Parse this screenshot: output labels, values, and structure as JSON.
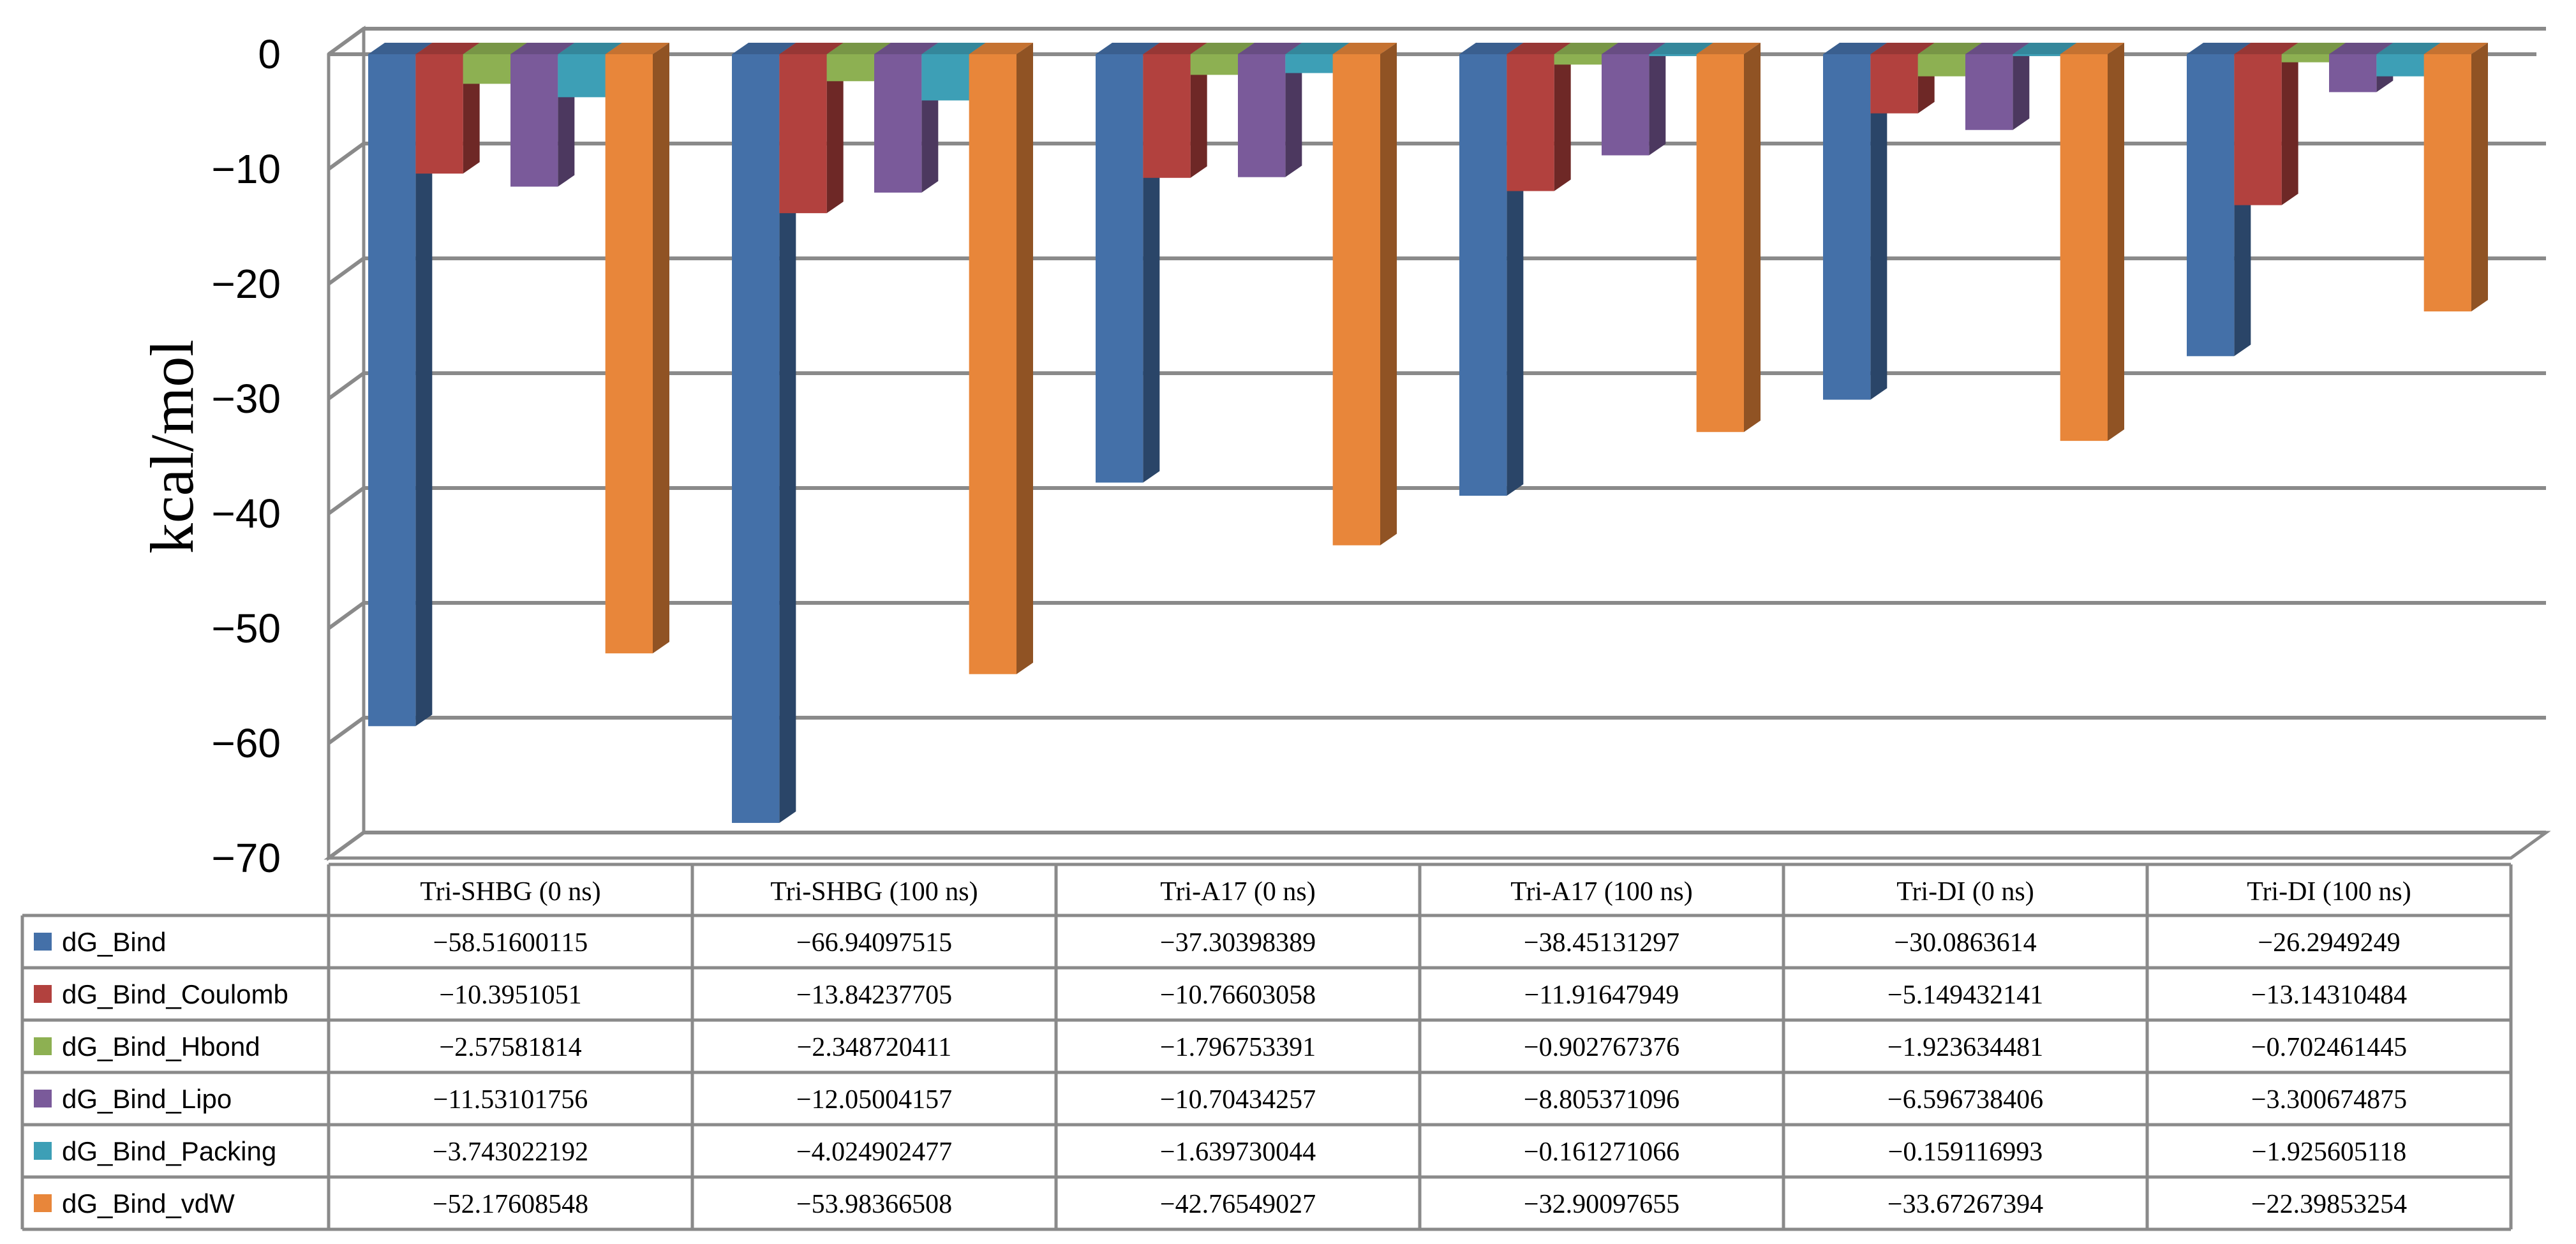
{
  "chart_data": {
    "type": "bar",
    "style": "3d-clustered-column-with-data-table",
    "title": "",
    "xlabel": "",
    "ylabel": "kcal/mol",
    "ylim": [
      -70,
      0
    ],
    "yticks": [
      0,
      -10,
      -20,
      -30,
      -40,
      -50,
      -60,
      -70
    ],
    "ytick_labels": [
      "0",
      "−10",
      "−20",
      "−30",
      "−40",
      "−50",
      "−60",
      "−70"
    ],
    "grid": true,
    "legend": "data-table-left",
    "categories": [
      "Tri-SHBG (0 ns)",
      "Tri-SHBG (100 ns)",
      "Tri-A17 (0 ns)",
      "Tri-A17 (100 ns)",
      "Tri-DI (0 ns)",
      "Tri-DI (100 ns)"
    ],
    "series": [
      {
        "name": "dG_Bind",
        "color": "#4470A8",
        "values": [
          -58.51600115,
          -66.94097515,
          -37.30398389,
          -38.45131297,
          -30.0863614,
          -26.2949249
        ],
        "labels": [
          "−58.51600115",
          "−66.94097515",
          "−37.30398389",
          "−38.45131297",
          "−30.0863614",
          "−26.2949249"
        ]
      },
      {
        "name": "dG_Bind_Coulomb",
        "color": "#B2413E",
        "values": [
          -10.3951051,
          -13.84237705,
          -10.76603058,
          -11.91647949,
          -5.149432141,
          -13.14310484
        ],
        "labels": [
          "−10.3951051",
          "−13.84237705",
          "−10.76603058",
          "−11.91647949",
          "−5.149432141",
          "−13.14310484"
        ]
      },
      {
        "name": "dG_Bind_Hbond",
        "color": "#8DB052",
        "values": [
          -2.57581814,
          -2.348720411,
          -1.796753391,
          -0.902767376,
          -1.923634481,
          -0.702461445
        ],
        "labels": [
          "−2.57581814",
          "−2.348720411",
          "−1.796753391",
          "−0.902767376",
          "−1.923634481",
          "−0.702461445"
        ]
      },
      {
        "name": "dG_Bind_Lipo",
        "color": "#7A5A9A",
        "values": [
          -11.53101756,
          -12.05004157,
          -10.70434257,
          -8.805371096,
          -6.596738406,
          -3.300674875
        ],
        "labels": [
          "−11.53101756",
          "−12.05004157",
          "−10.70434257",
          "−8.805371096",
          "−6.596738406",
          "−3.300674875"
        ]
      },
      {
        "name": "dG_Bind_Packing",
        "color": "#3D9FB6",
        "values": [
          -3.743022192,
          -4.024902477,
          -1.639730044,
          -0.161271066,
          -0.159116993,
          -1.925605118
        ],
        "labels": [
          "−3.743022192",
          "−4.024902477",
          "−1.639730044",
          "−0.161271066",
          "−0.159116993",
          "−1.925605118"
        ]
      },
      {
        "name": "dG_Bind_vdW",
        "color": "#E8863A",
        "values": [
          -52.17608548,
          -53.98366508,
          -42.76549027,
          -32.90097655,
          -33.67267394,
          -22.39853254
        ],
        "labels": [
          "−52.17608548",
          "−53.98366508",
          "−42.76549027",
          "−32.90097655",
          "−33.67267394",
          "−22.39853254"
        ]
      }
    ]
  }
}
